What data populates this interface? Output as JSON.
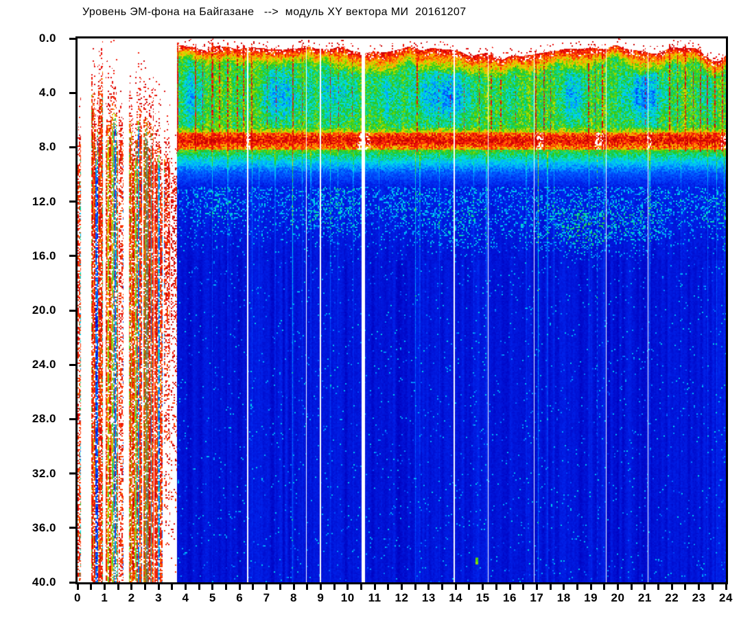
{
  "chart_data": {
    "type": "heatmap",
    "title": "Уровень ЭМ-фона на Байгазане   -->  модуль XY вектора МИ  20161207",
    "xlabel": "",
    "ylabel": "",
    "x_range": [
      0,
      24
    ],
    "y_range": [
      0,
      40
    ],
    "y_inverted": true,
    "x_tick_interval": 0.5,
    "x_label_interval": 1,
    "x_labels": [
      "0",
      "1",
      "2",
      "3",
      "4",
      "5",
      "6",
      "7",
      "8",
      "9",
      "10",
      "11",
      "12",
      "13",
      "14",
      "15",
      "16",
      "17",
      "18",
      "19",
      "20",
      "21",
      "22",
      "23",
      "24"
    ],
    "y_labels": [
      "0.0",
      "4.0",
      "8.0",
      "12.0",
      "16.0",
      "20.0",
      "24.0",
      "28.0",
      "32.0",
      "36.0",
      "40.0"
    ],
    "y_label_interval": 4,
    "grid": false,
    "legend": "none",
    "colormap_stops": [
      [
        0.0,
        0,
        0,
        140
      ],
      [
        0.08,
        0,
        0,
        190
      ],
      [
        0.16,
        0,
        35,
        235
      ],
      [
        0.24,
        0,
        90,
        255
      ],
      [
        0.32,
        0,
        170,
        255
      ],
      [
        0.4,
        0,
        225,
        225
      ],
      [
        0.47,
        20,
        210,
        120
      ],
      [
        0.53,
        30,
        200,
        40
      ],
      [
        0.6,
        120,
        215,
        0
      ],
      [
        0.67,
        225,
        220,
        0
      ],
      [
        0.75,
        255,
        160,
        0
      ],
      [
        0.83,
        255,
        60,
        0
      ],
      [
        0.92,
        235,
        10,
        10
      ],
      [
        1.0,
        195,
        0,
        0
      ]
    ],
    "spectrogram": {
      "start_hour": 3.66,
      "top_edge": {
        "base": 0.45,
        "noise": 0.4
      },
      "top_dips": [
        {
          "t": 10.9,
          "w": 0.7,
          "d": 0.45
        },
        {
          "t": 16.0,
          "w": 1.1,
          "d": 0.75
        },
        {
          "t": 23.65,
          "w": 0.55,
          "d": 0.9
        },
        {
          "t": 14.6,
          "w": 0.4,
          "d": 0.4
        },
        {
          "t": 21.3,
          "w": 0.4,
          "d": 0.3
        }
      ],
      "blue_patches": [
        {
          "t": 4.25,
          "w": 0.4,
          "s": 0.45
        },
        {
          "t": 7.5,
          "w": 0.8,
          "s": 0.5
        },
        {
          "t": 9.6,
          "w": 0.8,
          "s": 0.38
        },
        {
          "t": 11.45,
          "w": 0.45,
          "s": 0.3
        },
        {
          "t": 13.55,
          "w": 1.1,
          "s": 0.6
        },
        {
          "t": 16.05,
          "w": 0.4,
          "s": 0.2
        },
        {
          "t": 18.3,
          "w": 0.5,
          "s": 0.5
        },
        {
          "t": 20.95,
          "w": 0.8,
          "s": 0.6
        },
        {
          "t": 23.2,
          "w": 0.4,
          "s": 0.25
        }
      ],
      "red_streaks": [
        {
          "t": 3.69,
          "w": 0.08,
          "s": 1
        },
        {
          "t": 4.35,
          "w": 0.05,
          "s": 0.8
        },
        {
          "t": 4.62,
          "w": 0.04,
          "s": 0.6
        },
        {
          "t": 4.98,
          "w": 0.06,
          "s": 0.9
        },
        {
          "t": 5.25,
          "w": 0.04,
          "s": 0.7
        },
        {
          "t": 5.55,
          "w": 0.05,
          "s": 0.8
        },
        {
          "t": 5.9,
          "w": 0.04,
          "s": 0.6
        },
        {
          "t": 6.13,
          "w": 0.04,
          "s": 0.7
        },
        {
          "t": 6.45,
          "w": 0.05,
          "s": 0.8
        },
        {
          "t": 7.0,
          "w": 0.03,
          "s": 0.5
        },
        {
          "t": 7.35,
          "w": 0.03,
          "s": 0.5
        },
        {
          "t": 7.95,
          "w": 0.05,
          "s": 0.75
        },
        {
          "t": 8.3,
          "w": 0.04,
          "s": 0.6
        },
        {
          "t": 9.35,
          "w": 0.04,
          "s": 0.6
        },
        {
          "t": 9.65,
          "w": 0.03,
          "s": 0.5
        },
        {
          "t": 10.15,
          "w": 0.03,
          "s": 0.4
        },
        {
          "t": 12.55,
          "w": 0.05,
          "s": 0.85
        },
        {
          "t": 13.35,
          "w": 0.025,
          "s": 0.4
        },
        {
          "t": 13.8,
          "w": 0.025,
          "s": 0.4
        },
        {
          "t": 14.3,
          "w": 0.03,
          "s": 0.45
        },
        {
          "t": 14.85,
          "w": 0.03,
          "s": 0.5
        },
        {
          "t": 15.3,
          "w": 0.05,
          "s": 0.7
        },
        {
          "t": 15.65,
          "w": 0.04,
          "s": 0.6
        },
        {
          "t": 16.2,
          "w": 0.03,
          "s": 0.4
        },
        {
          "t": 16.95,
          "w": 0.06,
          "s": 0.85
        },
        {
          "t": 17.25,
          "w": 0.05,
          "s": 0.7
        },
        {
          "t": 17.5,
          "w": 0.04,
          "s": 0.6
        },
        {
          "t": 18.9,
          "w": 0.05,
          "s": 0.7
        },
        {
          "t": 19.15,
          "w": 0.04,
          "s": 0.6
        },
        {
          "t": 19.42,
          "w": 0.04,
          "s": 0.65
        },
        {
          "t": 21.0,
          "w": 0.03,
          "s": 0.5
        },
        {
          "t": 21.45,
          "w": 0.03,
          "s": 0.4
        },
        {
          "t": 21.9,
          "w": 0.05,
          "s": 0.75
        },
        {
          "t": 22.2,
          "w": 0.04,
          "s": 0.7
        },
        {
          "t": 22.5,
          "w": 0.05,
          "s": 0.75
        },
        {
          "t": 22.78,
          "w": 0.04,
          "s": 0.7
        },
        {
          "t": 23.05,
          "w": 0.05,
          "s": 0.75
        },
        {
          "t": 23.3,
          "w": 0.04,
          "s": 0.7
        },
        {
          "t": 23.58,
          "w": 0.05,
          "s": 0.75
        },
        {
          "t": 23.85,
          "w": 0.05,
          "s": 0.8
        }
      ],
      "white_gaps": [
        {
          "t": 6.28,
          "w": 0.06
        },
        {
          "t": 8.45,
          "w": 0.035
        },
        {
          "t": 8.98,
          "w": 0.03
        },
        {
          "t": 10.57,
          "w": 0.13
        },
        {
          "t": 13.93,
          "w": 0.035
        },
        {
          "t": 15.19,
          "w": 0.045
        },
        {
          "t": 16.89,
          "w": 0.022
        },
        {
          "t": 19.55,
          "w": 0.035
        },
        {
          "t": 21.1,
          "w": 0.035
        }
      ],
      "white_flecks": [
        {
          "t": 17.07,
          "w": 0.3
        },
        {
          "t": 19.3,
          "w": 0.35
        },
        {
          "t": 10.45,
          "w": 0.25
        },
        {
          "t": 10.72,
          "w": 0.2
        },
        {
          "t": 21.15,
          "w": 0.18
        },
        {
          "t": 23.9,
          "w": 0.18
        },
        {
          "t": 6.31,
          "w": 0.15
        }
      ],
      "cyan_lines": [
        {
          "t": 4.98,
          "s": 0.45
        },
        {
          "t": 5.55,
          "s": 0.3
        },
        {
          "t": 6.45,
          "s": 0.4
        },
        {
          "t": 6.7,
          "s": 0.25
        },
        {
          "t": 7.3,
          "s": 0.3
        },
        {
          "t": 7.95,
          "s": 0.75,
          "depth": 14
        },
        {
          "t": 8.3,
          "s": 0.35
        },
        {
          "t": 8.62,
          "s": 0.3
        },
        {
          "t": 9.35,
          "s": 0.4
        },
        {
          "t": 9.62,
          "s": 0.3
        },
        {
          "t": 10.2,
          "s": 0.25
        },
        {
          "t": 11.15,
          "s": 0.25
        },
        {
          "t": 12.5,
          "s": 0.6,
          "depth": 14
        },
        {
          "t": 12.66,
          "s": 0.4
        },
        {
          "t": 13.38,
          "s": 0.3
        },
        {
          "t": 14.65,
          "s": 0.25
        },
        {
          "t": 15.12,
          "s": 0.35
        },
        {
          "t": 16.6,
          "s": 0.25
        },
        {
          "t": 17.04,
          "s": 0.85,
          "depth": 16
        },
        {
          "t": 17.38,
          "s": 0.45
        },
        {
          "t": 17.62,
          "s": 0.3
        },
        {
          "t": 18.92,
          "s": 0.4
        },
        {
          "t": 19.22,
          "s": 0.65,
          "dashed": true,
          "depth": 14
        },
        {
          "t": 19.48,
          "s": 0.35
        },
        {
          "t": 21.17,
          "s": 0.45
        },
        {
          "t": 22.32,
          "s": 0.25
        },
        {
          "t": 23.32,
          "s": 0.4
        },
        {
          "t": 23.65,
          "s": 0.45
        },
        {
          "t": 23.92,
          "s": 0.55
        }
      ],
      "clouds": [
        {
          "t": 5.3,
          "tw": 1.0,
          "f": 12.3,
          "fw": 1.6,
          "s": 0.3
        },
        {
          "t": 9.4,
          "tw": 1.2,
          "f": 12.8,
          "fw": 1.8,
          "s": 0.45
        },
        {
          "t": 12.2,
          "tw": 0.7,
          "f": 12.3,
          "fw": 1.4,
          "s": 0.3
        },
        {
          "t": 14.2,
          "tw": 1.1,
          "f": 13.5,
          "fw": 1.7,
          "s": 0.4
        },
        {
          "t": 18.8,
          "tw": 1.7,
          "f": 13.8,
          "fw": 1.8,
          "s": 0.7
        },
        {
          "t": 21.3,
          "tw": 0.9,
          "f": 13.2,
          "fw": 1.5,
          "s": 0.35
        },
        {
          "t": 23.5,
          "tw": 0.7,
          "f": 12.5,
          "fw": 1.5,
          "s": 0.3
        }
      ],
      "bursts": [
        {
          "t0": 0.0,
          "t1": 0.12,
          "top": 7.2,
          "var": 2.5,
          "dense": 0.5,
          "redBias": 0.75,
          "seed": 1
        },
        {
          "t0": 0.5,
          "t1": 0.93,
          "top": 2.3,
          "var": 3.2,
          "dense": 0.8,
          "redBias": 0.3,
          "seed": 2
        },
        {
          "t0": 1.02,
          "t1": 1.48,
          "top": 4.2,
          "var": 3.0,
          "dense": 0.75,
          "redBias": 0.35,
          "seed": 3
        },
        {
          "t0": 1.52,
          "t1": 1.7,
          "top": 5.4,
          "var": 2.2,
          "dense": 0.45,
          "redBias": 0.6,
          "seed": 4
        },
        {
          "t0": 1.9,
          "t1": 2.38,
          "top": 4.8,
          "var": 3.0,
          "dense": 0.8,
          "redBias": 0.35,
          "seed": 5
        },
        {
          "t0": 2.42,
          "t1": 2.8,
          "top": 3.9,
          "var": 2.6,
          "dense": 0.85,
          "redBias": 0.55,
          "seed": 6
        },
        {
          "t0": 2.84,
          "t1": 3.14,
          "top": 6.2,
          "var": 2.4,
          "dense": 0.8,
          "redBias": 0.65,
          "seed": 7
        },
        {
          "t0": 3.18,
          "t1": 3.42,
          "top": 8.6,
          "var": 2.0,
          "dense": 0.6,
          "redBias": 0.8,
          "seed": 8,
          "fade": true
        },
        {
          "t0": 3.45,
          "t1": 3.66,
          "top": 9.2,
          "var": 3.0,
          "dense": 0.35,
          "redBias": 0.95,
          "seed": 9,
          "fade": true
        }
      ],
      "dots": [
        {
          "t": 14.78,
          "f": 38.4,
          "s": 0.55
        }
      ]
    }
  }
}
